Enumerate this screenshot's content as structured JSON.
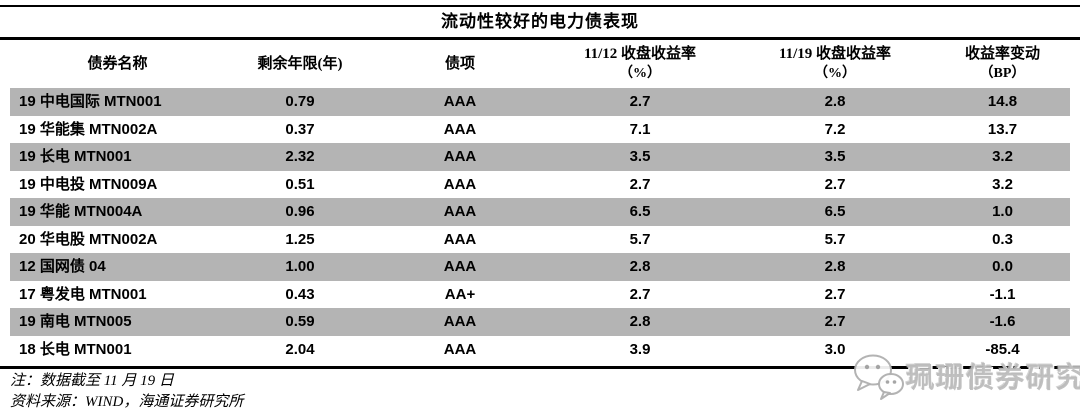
{
  "title": "流动性较好的电力债表现",
  "table": {
    "columns": [
      {
        "label": "债券名称",
        "sub": ""
      },
      {
        "label": "剩余年限(年)",
        "sub": ""
      },
      {
        "label": "债项",
        "sub": ""
      },
      {
        "label": "11/12 收盘收益率",
        "sub": "（%）"
      },
      {
        "label": "11/19 收盘收益率",
        "sub": "（%）"
      },
      {
        "label": "收益率变动",
        "sub": "（BP）"
      }
    ],
    "rows": [
      [
        "19 中电国际 MTN001",
        "0.79",
        "AAA",
        "2.7",
        "2.8",
        "14.8"
      ],
      [
        "19 华能集 MTN002A",
        "0.37",
        "AAA",
        "7.1",
        "7.2",
        "13.7"
      ],
      [
        "19 长电 MTN001",
        "2.32",
        "AAA",
        "3.5",
        "3.5",
        "3.2"
      ],
      [
        "19 中电投 MTN009A",
        "0.51",
        "AAA",
        "2.7",
        "2.7",
        "3.2"
      ],
      [
        "19 华能 MTN004A",
        "0.96",
        "AAA",
        "6.5",
        "6.5",
        "1.0"
      ],
      [
        "20 华电股 MTN002A",
        "1.25",
        "AAA",
        "5.7",
        "5.7",
        "0.3"
      ],
      [
        "12 国网债 04",
        "1.00",
        "AAA",
        "2.8",
        "2.8",
        "0.0"
      ],
      [
        "17 粤发电 MTN001",
        "0.43",
        "AA+",
        "2.7",
        "2.7",
        "-1.1"
      ],
      [
        "19 南电 MTN005",
        "0.59",
        "AAA",
        "2.8",
        "2.7",
        "-1.6"
      ],
      [
        "18 长电 MTN001",
        "2.04",
        "AAA",
        "3.9",
        "3.0",
        "-85.4"
      ]
    ]
  },
  "notes": {
    "note1": "注：数据截至 11 月 19 日",
    "note2": "资料来源：WIND，海通证券研究所"
  },
  "watermark": {
    "text": "珮珊债券研究"
  },
  "colors": {
    "row_stripe": "#b4b4b4",
    "rule": "#000000"
  }
}
